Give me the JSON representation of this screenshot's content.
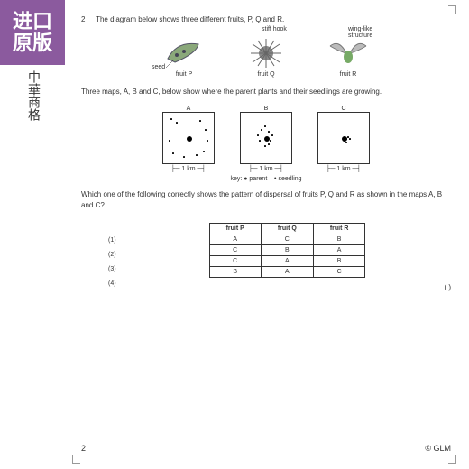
{
  "badge": {
    "l1": "进口",
    "l2": "原版",
    "shop": "中華商格"
  },
  "q": {
    "num": "2",
    "intro": "The diagram below shows three different fruits, P, Q and R."
  },
  "fruits": {
    "p": {
      "caption": "fruit P",
      "label": "seed",
      "color": "#8aa87a"
    },
    "q": {
      "caption": "fruit Q",
      "label": "stiff hook",
      "color": "#888"
    },
    "r": {
      "caption": "fruit R",
      "label": "wing-like structure",
      "color": "#999"
    }
  },
  "maps_intro": "Three maps, A, B and C, below show where the parent plants and their seedlings are growing.",
  "maps": {
    "a": {
      "title": "A",
      "scale": "1 km",
      "parent": [
        26,
        26
      ],
      "seeds": [
        [
          8,
          6
        ],
        [
          14,
          10
        ],
        [
          40,
          8
        ],
        [
          46,
          18
        ],
        [
          10,
          44
        ],
        [
          22,
          48
        ],
        [
          44,
          42
        ],
        [
          36,
          46
        ],
        [
          6,
          30
        ],
        [
          48,
          30
        ]
      ]
    },
    "b": {
      "title": "B",
      "scale": "1 km",
      "parent": [
        26,
        26
      ],
      "seeds": [
        [
          22,
          18
        ],
        [
          30,
          20
        ],
        [
          20,
          30
        ],
        [
          32,
          30
        ],
        [
          26,
          14
        ],
        [
          18,
          24
        ],
        [
          34,
          24
        ],
        [
          26,
          36
        ],
        [
          30,
          34
        ]
      ]
    },
    "c": {
      "title": "C",
      "scale": "1 km",
      "parent": [
        26,
        26
      ],
      "seeds": [
        [
          30,
          28
        ],
        [
          32,
          26
        ],
        [
          28,
          30
        ],
        [
          34,
          28
        ],
        [
          30,
          32
        ]
      ]
    }
  },
  "key": {
    "text": "key:",
    "parent": "parent",
    "seedling": "seedling"
  },
  "question": "Which one of the following correctly shows the pattern of dispersal of fruits P, Q and R as shown in the maps A, B and C?",
  "table": {
    "headers": [
      "fruit P",
      "fruit Q",
      "fruit R"
    ],
    "rows": [
      [
        "A",
        "C",
        "B"
      ],
      [
        "C",
        "B",
        "A"
      ],
      [
        "C",
        "A",
        "B"
      ],
      [
        "B",
        "A",
        "C"
      ]
    ],
    "opts": [
      "(1)",
      "(2)",
      "(3)",
      "(4)"
    ]
  },
  "blank": "(        )",
  "footer": {
    "page": "2",
    "copy": "© GLM"
  }
}
